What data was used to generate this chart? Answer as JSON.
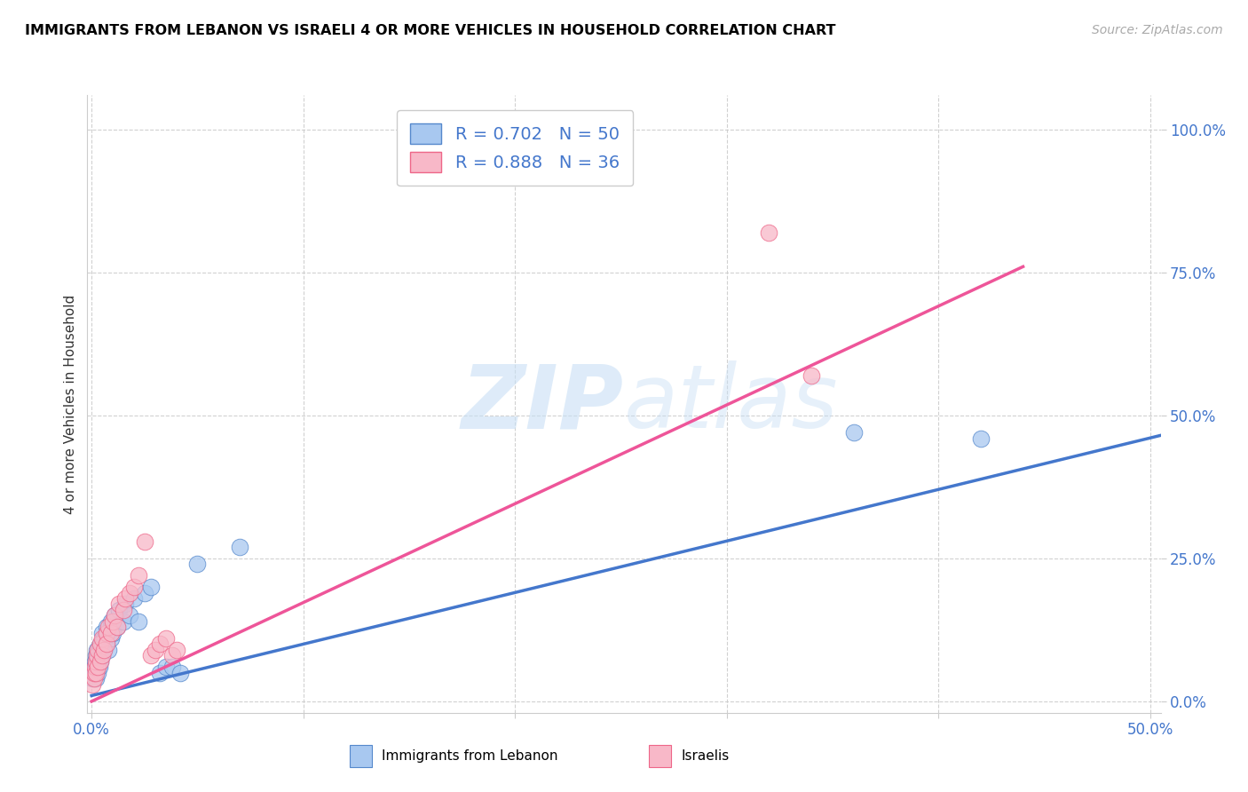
{
  "title": "IMMIGRANTS FROM LEBANON VS ISRAELI 4 OR MORE VEHICLES IN HOUSEHOLD CORRELATION CHART",
  "source_text": "Source: ZipAtlas.com",
  "yaxis_label": "4 or more Vehicles in Household",
  "x_ticks": [
    0.0,
    0.1,
    0.2,
    0.3,
    0.4,
    0.5
  ],
  "y_ticks": [
    0.0,
    0.25,
    0.5,
    0.75,
    1.0
  ],
  "xlim": [
    -0.002,
    0.505
  ],
  "ylim": [
    -0.02,
    1.06
  ],
  "legend_label1": "Immigrants from Lebanon",
  "legend_label2": "Israelis",
  "blue_fill": "#a8c8f0",
  "pink_fill": "#f8b8c8",
  "blue_edge": "#5588cc",
  "pink_edge": "#ee6688",
  "blue_line": "#4477cc",
  "pink_line": "#ee5599",
  "grid_color": "#cccccc",
  "watermark_color": "#ddeeff",
  "blue_scatter_x": [
    0.0005,
    0.001,
    0.001,
    0.0015,
    0.0015,
    0.002,
    0.002,
    0.002,
    0.0025,
    0.0025,
    0.003,
    0.003,
    0.003,
    0.003,
    0.0035,
    0.0035,
    0.004,
    0.004,
    0.004,
    0.0045,
    0.005,
    0.005,
    0.005,
    0.006,
    0.006,
    0.007,
    0.007,
    0.008,
    0.008,
    0.009,
    0.009,
    0.01,
    0.011,
    0.012,
    0.013,
    0.015,
    0.016,
    0.018,
    0.02,
    0.022,
    0.025,
    0.028,
    0.032,
    0.035,
    0.038,
    0.042,
    0.05,
    0.07,
    0.36,
    0.42
  ],
  "blue_scatter_y": [
    0.04,
    0.05,
    0.06,
    0.05,
    0.07,
    0.04,
    0.06,
    0.08,
    0.07,
    0.09,
    0.05,
    0.06,
    0.07,
    0.08,
    0.06,
    0.09,
    0.07,
    0.08,
    0.1,
    0.09,
    0.08,
    0.1,
    0.12,
    0.09,
    0.11,
    0.1,
    0.13,
    0.09,
    0.12,
    0.11,
    0.14,
    0.12,
    0.15,
    0.13,
    0.16,
    0.14,
    0.17,
    0.15,
    0.18,
    0.14,
    0.19,
    0.2,
    0.05,
    0.06,
    0.06,
    0.05,
    0.24,
    0.27,
    0.47,
    0.46
  ],
  "pink_scatter_x": [
    0.0005,
    0.001,
    0.001,
    0.0015,
    0.002,
    0.002,
    0.0025,
    0.003,
    0.003,
    0.004,
    0.004,
    0.005,
    0.005,
    0.006,
    0.007,
    0.007,
    0.008,
    0.009,
    0.01,
    0.011,
    0.012,
    0.013,
    0.015,
    0.016,
    0.018,
    0.02,
    0.022,
    0.025,
    0.028,
    0.03,
    0.032,
    0.035,
    0.038,
    0.04,
    0.32,
    0.34
  ],
  "pink_scatter_y": [
    0.03,
    0.04,
    0.05,
    0.06,
    0.05,
    0.07,
    0.08,
    0.06,
    0.09,
    0.07,
    0.1,
    0.08,
    0.11,
    0.09,
    0.12,
    0.1,
    0.13,
    0.12,
    0.14,
    0.15,
    0.13,
    0.17,
    0.16,
    0.18,
    0.19,
    0.2,
    0.22,
    0.28,
    0.08,
    0.09,
    0.1,
    0.11,
    0.08,
    0.09,
    0.82,
    0.57
  ],
  "blue_line_x": [
    0.0,
    0.505
  ],
  "blue_line_y": [
    0.01,
    0.465
  ],
  "pink_line_x": [
    0.0,
    0.44
  ],
  "pink_line_y": [
    0.0,
    0.76
  ]
}
